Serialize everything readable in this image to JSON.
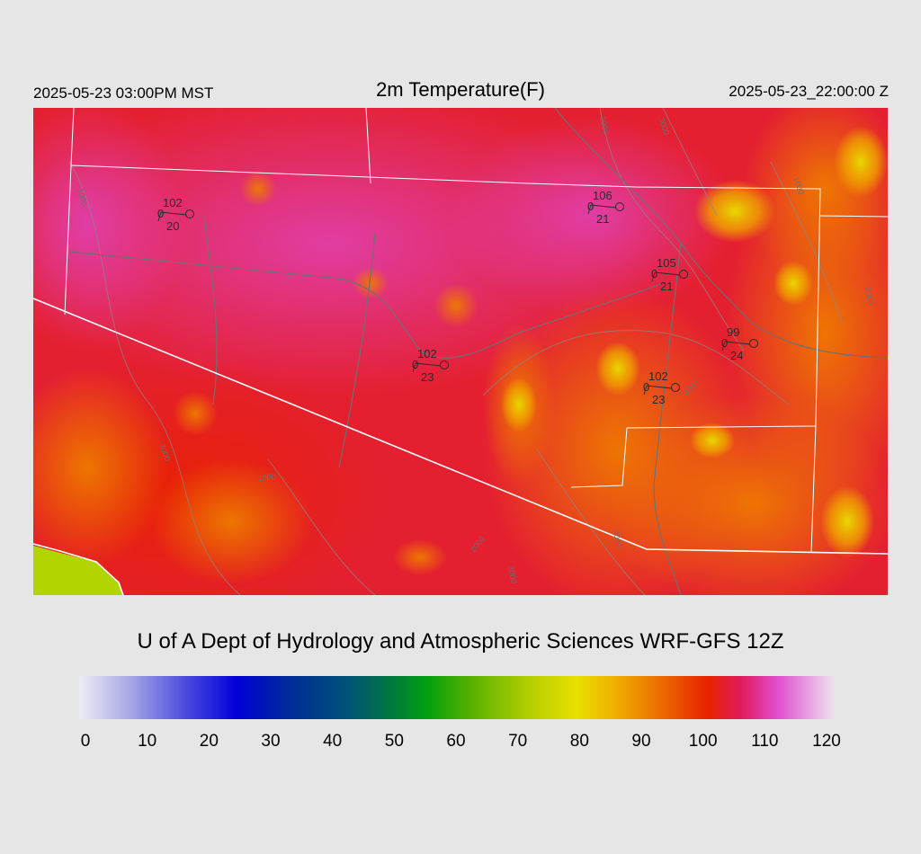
{
  "header": {
    "local_time": "2025-05-23 03:00PM MST",
    "title": "2m Temperature(F)",
    "utc_time": "2025-05-23_22:00:00 Z"
  },
  "credit": "U of A Dept of Hydrology and Atmospheric Sciences WRF-GFS 12Z",
  "colorbar": {
    "min": 0,
    "max": 120,
    "ticks": [
      "0",
      "10",
      "20",
      "30",
      "40",
      "50",
      "60",
      "70",
      "80",
      "90",
      "100",
      "110",
      "120"
    ],
    "stops": [
      {
        "v": 0,
        "c": "#ededf5"
      },
      {
        "v": 8,
        "c": "#a8a8e6"
      },
      {
        "v": 17,
        "c": "#4a4ae0"
      },
      {
        "v": 25,
        "c": "#0000d8"
      },
      {
        "v": 33,
        "c": "#002a9a"
      },
      {
        "v": 42,
        "c": "#00507a"
      },
      {
        "v": 50,
        "c": "#007a3a"
      },
      {
        "v": 55,
        "c": "#00a010"
      },
      {
        "v": 62,
        "c": "#55b000"
      },
      {
        "v": 72,
        "c": "#b8d000"
      },
      {
        "v": 79,
        "c": "#e8e000"
      },
      {
        "v": 85,
        "c": "#f0b000"
      },
      {
        "v": 92,
        "c": "#ec7000"
      },
      {
        "v": 100,
        "c": "#e82000"
      },
      {
        "v": 105,
        "c": "#e01a5a"
      },
      {
        "v": 111,
        "c": "#e050d0"
      },
      {
        "v": 120,
        "c": "#ede4ee"
      }
    ]
  },
  "stations": [
    {
      "temp": "102",
      "left": "0",
      "bottom": "20"
    },
    {
      "temp": "106",
      "left": "0",
      "bottom": "21"
    },
    {
      "temp": "105",
      "left": "0",
      "bottom": "21"
    },
    {
      "temp": "99",
      "left": "0",
      "bottom": "24"
    },
    {
      "temp": "102",
      "left": "0",
      "bottom": "23"
    },
    {
      "temp": "102",
      "left": "0",
      "bottom": "23"
    }
  ],
  "contour_labels": [
    "1000",
    "2000",
    "3000",
    "1000",
    "2000",
    "3000",
    "3000",
    "1000",
    "2000",
    "3000",
    "3000"
  ]
}
